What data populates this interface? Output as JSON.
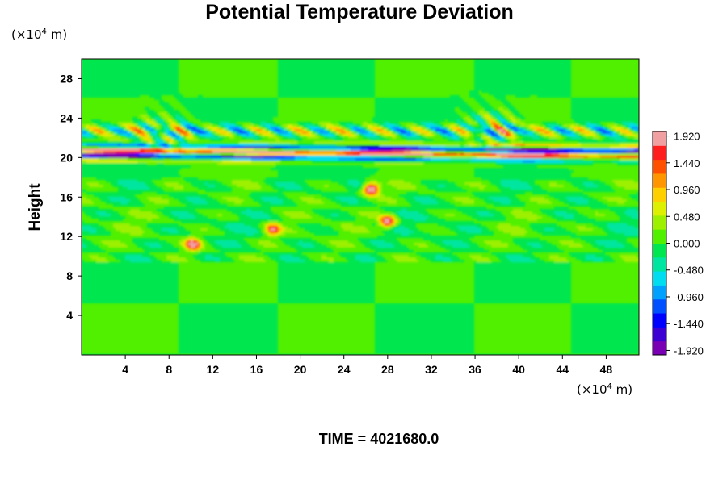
{
  "chart_data": {
    "type": "heatmap",
    "title": "Potential Temperature Deviation",
    "ylabel": "Height",
    "xlabel": "",
    "x_unit_prefix": "(×10",
    "x_unit_exp": "4",
    "x_unit_suffix": " m)",
    "y_unit_prefix": "(×10",
    "y_unit_exp": "4",
    "y_unit_suffix": " m)",
    "xlim": [
      0,
      51
    ],
    "ylim": [
      0,
      30
    ],
    "x_ticks": [
      4,
      8,
      12,
      16,
      20,
      24,
      28,
      32,
      36,
      40,
      44,
      48
    ],
    "x_tick_labels": [
      "4",
      "8",
      "12",
      "16",
      "20",
      "24",
      "28",
      "32",
      "36",
      "40",
      "44",
      "48"
    ],
    "y_ticks": [
      4,
      8,
      12,
      16,
      20,
      24,
      28
    ],
    "y_tick_labels": [
      "4",
      "8",
      "12",
      "16",
      "20",
      "24",
      "28"
    ],
    "colorbar": {
      "range": [
        -2.0,
        2.0
      ],
      "tick_values": [
        1.92,
        1.44,
        0.96,
        0.48,
        0.0,
        -0.48,
        -0.96,
        -1.44,
        -1.92
      ],
      "tick_labels": [
        "1.920",
        "1.440",
        "0.960",
        "0.480",
        "0.000",
        "-0.480",
        "-0.960",
        "-1.440",
        "-1.920"
      ],
      "colors": [
        "#7a00b4",
        "#3c00d2",
        "#0000ff",
        "#0050ff",
        "#00a0ff",
        "#00dcf0",
        "#00e6a0",
        "#00e650",
        "#50f000",
        "#9cf000",
        "#dcf000",
        "#ffd000",
        "#ff9600",
        "#ff5000",
        "#ff1e1e",
        "#f0a0a0"
      ]
    },
    "features": [
      {
        "kind": "band",
        "x": [
          0,
          51
        ],
        "y": [
          19.5,
          21.5
        ],
        "value_range": [
          -2.0,
          2.0
        ],
        "note": "strong alternating positive/negative layers"
      },
      {
        "kind": "band",
        "x": [
          0,
          51
        ],
        "y": [
          22.0,
          23.5
        ],
        "value_range": [
          -1.0,
          1.0
        ]
      },
      {
        "kind": "blob",
        "x": 26.5,
        "y": 16.8,
        "value": 1.9
      },
      {
        "kind": "blob",
        "x": 28.0,
        "y": 13.5,
        "value": 1.6
      },
      {
        "kind": "blob",
        "x": 10.2,
        "y": 11.2,
        "value": 1.5
      },
      {
        "kind": "blob",
        "x": 17.5,
        "y": 12.7,
        "value": 1.2
      }
    ],
    "background_value": 0.0
  },
  "footer": {
    "time_label": "TIME = 4021680.0"
  }
}
